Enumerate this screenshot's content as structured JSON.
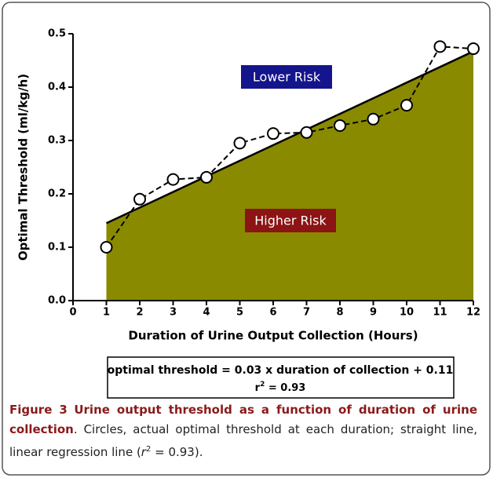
{
  "chart_data": {
    "type": "line",
    "x_label": "Duration of Urine Output Collection (Hours)",
    "y_label": "Optimal Threshold (ml/kg/h)",
    "x": [
      1,
      2,
      3,
      4,
      5,
      6,
      7,
      8,
      9,
      10,
      11,
      12
    ],
    "series": [
      {
        "color": "#000000",
        "values": [
          0.1,
          0.19,
          0.227,
          0.231,
          0.295,
          0.313,
          0.315,
          0.328,
          0.34,
          0.366,
          0.476,
          0.472
        ]
      }
    ],
    "regression": {
      "x": [
        1,
        12
      ],
      "values": [
        0.145,
        0.467
      ],
      "color": "#000000",
      "fill": "#8a8a00"
    },
    "xlim": [
      0,
      12
    ],
    "xticks": [
      0,
      1,
      2,
      3,
      4,
      5,
      6,
      7,
      8,
      9,
      10,
      11,
      12
    ],
    "ylim": [
      0,
      0.5
    ],
    "yticks": [
      {
        "value": 0,
        "label": "0.0"
      },
      0.1,
      0.2,
      0.3,
      0.4,
      0.5
    ],
    "annotations": [
      {
        "text": "Lower Risk",
        "color": "#14148c"
      },
      {
        "text": "Higher Risk",
        "color": "#8c1414"
      }
    ],
    "equation": {
      "line1": "optimal threshold = 0.03 x duration of collection + 0.11",
      "base": "r",
      "sup": "2",
      "rest": " = 0.93"
    }
  },
  "caption": {
    "label": "Figure 3",
    "title": "Urine output threshold as a function of duration of urine collection",
    "text1": ". Circles, actual optimal threshold at each duration; straight line, linear regression line (",
    "r": "r",
    "sup": "2",
    "text2": " = 0.93)."
  }
}
